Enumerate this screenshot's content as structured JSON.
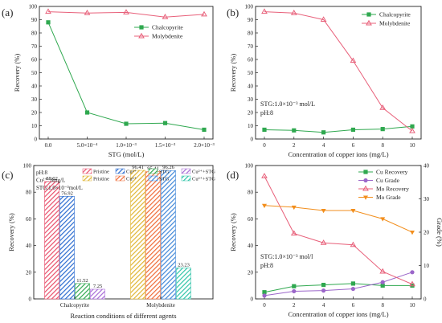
{
  "colors": {
    "green": "#2fa84f",
    "red": "#e8607a",
    "purple": "#9b66c9",
    "orange": "#f28e1c",
    "blue": "#2f6fcf",
    "pink_b": "#ef5c7a",
    "pink_c": "#f08070"
  },
  "panels": [
    {
      "label": "(a)"
    },
    {
      "label": "(b)"
    },
    {
      "label": "(c)"
    },
    {
      "label": "(d)"
    }
  ],
  "chart_data": [
    {
      "id": "a",
      "type": "line",
      "xlabel": "STG (mol/L)",
      "ylabel": "Recovery (%)",
      "categories": [
        "0.0",
        "5.0×10⁻⁴",
        "1.0×10⁻³",
        "1.5×10⁻³",
        "2.0×10⁻³"
      ],
      "ylim": [
        0,
        100
      ],
      "yticks": [
        "0",
        "10",
        "20",
        "30",
        "40",
        "50",
        "60",
        "70",
        "80",
        "90",
        "100"
      ],
      "legend": "top-right",
      "series": [
        {
          "name": "Chalcopyrite",
          "values": [
            88,
            20,
            11.5,
            12,
            7
          ],
          "color": "#2fa84f",
          "marker": "square"
        },
        {
          "name": "Molybdenite",
          "values": [
            96,
            95,
            95.5,
            92,
            94
          ],
          "color": "#e8607a",
          "marker": "triangle-up"
        }
      ]
    },
    {
      "id": "b",
      "type": "line",
      "xlabel": "Concentration of copper ions (mg/L)",
      "ylabel": "Recovery (%)",
      "x": [
        0,
        2,
        4,
        6,
        8,
        10
      ],
      "xticks": [
        "0",
        "2",
        "4",
        "6",
        "8",
        "10"
      ],
      "ylim": [
        0,
        100
      ],
      "yticks": [
        "0",
        "10",
        "20",
        "30",
        "40",
        "50",
        "60",
        "70",
        "80",
        "90",
        "100"
      ],
      "legend": "top-right",
      "annotation": [
        "STG:1.0×10⁻³ mol/L",
        "pH:8"
      ],
      "series": [
        {
          "name": "Chalcopyrite",
          "values": [
            7,
            6.5,
            5,
            7,
            7.5,
            9.5
          ],
          "color": "#2fa84f",
          "marker": "square"
        },
        {
          "name": "Molybdenite",
          "values": [
            96,
            95,
            90,
            59,
            23.5,
            6
          ],
          "color": "#e8607a",
          "marker": "triangle-up"
        }
      ]
    },
    {
      "id": "c",
      "type": "bar",
      "xlabel": "Reaction conditions of different agents",
      "ylabel": "Recovery (%)",
      "categories": [
        "Chalcopyrite",
        "Molybdenite"
      ],
      "ylim": [
        0,
        100
      ],
      "yticks": [
        "0",
        "20",
        "40",
        "60",
        "80",
        "100"
      ],
      "annotation": [
        "pH:8",
        "Cu²⁺:  8mg/L",
        "STG:1.0×10⁻³mol/L"
      ],
      "legend_rows": [
        [
          "Pristine",
          "Cu²⁺",
          "STG",
          "Cu²⁺+STG"
        ],
        [
          "Pristine",
          "Cu²⁺",
          "STG",
          "Cu²⁺+STG"
        ]
      ],
      "series": [
        {
          "name": "Pristine",
          "values": [
            88.02,
            96.41
          ],
          "labels": [
            "88.02",
            "96.41"
          ]
        },
        {
          "name": "Cu²⁺",
          "values": [
            76.92,
            95.41
          ],
          "labels": [
            "76.92",
            "95.41"
          ]
        },
        {
          "name": "STG",
          "values": [
            11.52,
            96.26
          ],
          "labels": [
            "11.52",
            "96.26"
          ]
        },
        {
          "name": "Cu²⁺+STG",
          "values": [
            7.25,
            23.23
          ],
          "labels": [
            "7.25",
            "23.23"
          ]
        }
      ],
      "bar_colors": [
        [
          "#e84e6a",
          "#2a6bd0",
          "#2fa84f",
          "#a66ad6"
        ],
        [
          "#e0b531",
          "#ef6a36",
          "#3f86d8",
          "#2fc4a8"
        ]
      ]
    },
    {
      "id": "d",
      "type": "line",
      "xlabel": "Concentration of copper ions (mg/L)",
      "ylabel": "Recovery (%)",
      "y2label": "Grade (%)",
      "x": [
        0,
        2,
        4,
        6,
        8,
        10
      ],
      "xticks": [
        "0",
        "2",
        "4",
        "6",
        "8",
        "10"
      ],
      "ylim": [
        0,
        100
      ],
      "yticks": [
        "0",
        "20",
        "40",
        "60",
        "80",
        "100"
      ],
      "y2lim": [
        0,
        40
      ],
      "y2ticks": [
        "0",
        "10",
        "20",
        "30",
        "40"
      ],
      "annotation": [
        "STG:1.0×10⁻³ mol/l",
        "pH:8"
      ],
      "legend": "top-right",
      "series": [
        {
          "name": "Cu Recovery",
          "axis": "left",
          "values": [
            5,
            9.5,
            10.5,
            11.5,
            10,
            10
          ],
          "color": "#2fa84f",
          "marker": "square"
        },
        {
          "name": "Cu Grade",
          "axis": "right",
          "values": [
            1,
            2.3,
            2.5,
            3,
            5,
            8
          ],
          "color": "#9b66c9",
          "marker": "circle"
        },
        {
          "name": "Mo Recovery",
          "axis": "left",
          "values": [
            92,
            49,
            42,
            40.5,
            20.5,
            11
          ],
          "color": "#e8607a",
          "marker": "triangle-up"
        },
        {
          "name": "Mo Grade",
          "axis": "right",
          "values": [
            28,
            27.5,
            26.5,
            26.5,
            24,
            20
          ],
          "color": "#f28e1c",
          "marker": "triangle-down"
        }
      ]
    }
  ]
}
